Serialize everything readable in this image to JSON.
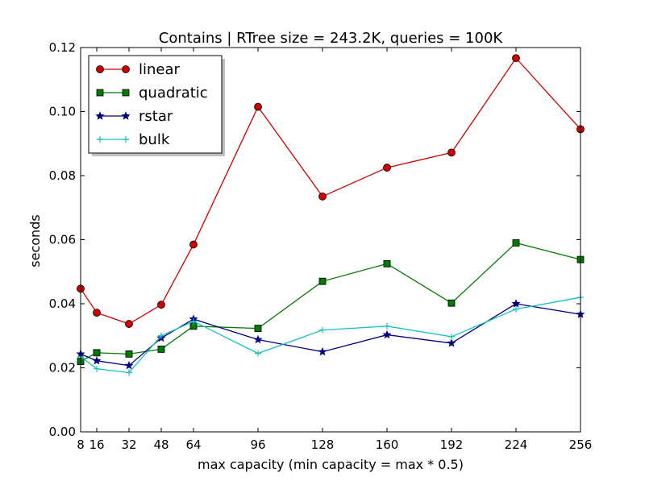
{
  "chart_data": {
    "type": "line",
    "title": "Contains | RTree size = 243.2K, queries = 100K",
    "xlabel": "max capacity (min capacity = max * 0.5)",
    "ylabel": "seconds",
    "xlim": [
      8,
      256
    ],
    "ylim": [
      0,
      0.12
    ],
    "xticks": [
      8,
      16,
      32,
      48,
      64,
      96,
      128,
      160,
      192,
      224,
      256
    ],
    "xtick_labels": [
      "8",
      "16",
      "32",
      "48",
      "64",
      "96",
      "128",
      "160",
      "192",
      "224",
      "256"
    ],
    "yticks": [
      0,
      0.02,
      0.04,
      0.06,
      0.08,
      0.1,
      0.12
    ],
    "ytick_labels": [
      "0.00",
      "0.02",
      "0.04",
      "0.06",
      "0.08",
      "0.10",
      "0.12"
    ],
    "x": [
      8,
      16,
      32,
      48,
      64,
      96,
      128,
      160,
      192,
      224,
      256
    ],
    "grid": false,
    "legend_position": "top-left",
    "series": [
      {
        "name": "linear",
        "color": "#cc0000",
        "marker": "circle",
        "values": [
          0.0447,
          0.0372,
          0.0337,
          0.0397,
          0.0585,
          0.1015,
          0.0735,
          0.0825,
          0.0872,
          0.1167,
          0.0945
        ]
      },
      {
        "name": "quadratic",
        "color": "#007a00",
        "marker": "square",
        "values": [
          0.022,
          0.0247,
          0.0243,
          0.0258,
          0.033,
          0.0323,
          0.047,
          0.0525,
          0.0402,
          0.059,
          0.0538
        ]
      },
      {
        "name": "rstar",
        "color": "#00007f",
        "marker": "star",
        "values": [
          0.0243,
          0.0222,
          0.0207,
          0.0293,
          0.0352,
          0.0288,
          0.025,
          0.0303,
          0.0277,
          0.04,
          0.0367
        ]
      },
      {
        "name": "bulk",
        "color": "#1abfbf",
        "marker": "plus",
        "values": [
          0.0235,
          0.0197,
          0.0185,
          0.03,
          0.0345,
          0.0245,
          0.0318,
          0.033,
          0.0297,
          0.0383,
          0.042
        ]
      }
    ]
  }
}
